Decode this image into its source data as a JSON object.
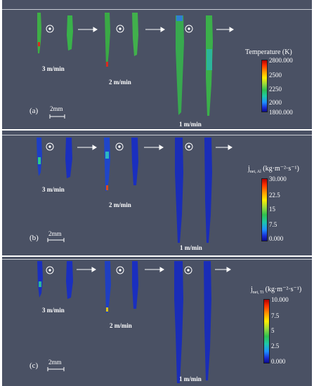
{
  "colors": {
    "background": "#4a5164",
    "text": "#ffffff"
  },
  "panels": [
    {
      "label": "(a)",
      "scale_bar": "2mm",
      "speeds": [
        "3 m/min",
        "2 m/min",
        "1 m/min"
      ],
      "colorbar": {
        "title": "Temperature (K)",
        "title_main": "",
        "title_sub": "",
        "title_unit": "",
        "ticks": [
          "2800.000",
          "2500",
          "2250",
          "2000",
          "1800.000"
        ]
      }
    },
    {
      "label": "(b)",
      "scale_bar": "2mm",
      "speeds": [
        "3 m/min",
        "2 m/min",
        "1 m/min"
      ],
      "colorbar": {
        "title": "",
        "title_main": "j",
        "title_sub": "net, Al",
        "title_unit": " (kg·m⁻²·s⁻¹)",
        "ticks": [
          "30.000",
          "22.5",
          "15",
          "7.5",
          "0.000"
        ]
      }
    },
    {
      "label": "(c)",
      "scale_bar": "2mm",
      "speeds": [
        "3 m/min",
        "2 m/min",
        "1 m/min"
      ],
      "colorbar": {
        "title": "",
        "title_main": "j",
        "title_sub": "net, Ti",
        "title_unit": " (kg·m⁻²·s⁻¹)",
        "ticks": [
          "10.000",
          "7.5",
          "5",
          "2.5",
          "0.000"
        ]
      }
    }
  ]
}
